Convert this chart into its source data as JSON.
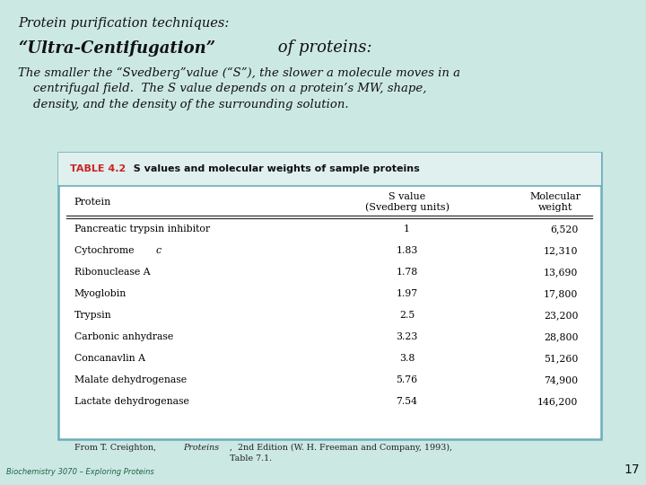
{
  "bg_color": "#cce8e3",
  "title1": "Protein purification techniques:",
  "title2_bold": "“Ultra-Centifugation”",
  "title2_rest": " of proteins:",
  "body_text": "The smaller the “Svedberg”value (“S”), the slower a molecule moves in a\n    centrifugal field.  The S value depends on a protein’s MW, shape,\n    density, and the density of the surrounding solution.",
  "table_title_label": "TABLE 4.2",
  "table_title_text": "  S values and molecular weights of sample proteins",
  "col_headers": [
    "Protein",
    "S value\n(Svedberg units)",
    "Molecular\nweight"
  ],
  "rows": [
    [
      "Pancreatic trypsin inhibitor",
      "1",
      "6,520"
    ],
    [
      "Cytochrome c",
      "1.83",
      "12,310"
    ],
    [
      "Ribonuclease A",
      "1.78",
      "13,690"
    ],
    [
      "Myoglobin",
      "1.97",
      "17,800"
    ],
    [
      "Trypsin",
      "2.5",
      "23,200"
    ],
    [
      "Carbonic anhydrase",
      "3.23",
      "28,800"
    ],
    [
      "Concanavlin A",
      "3.8",
      "51,260"
    ],
    [
      "Malate dehydrogenase",
      "5.76",
      "74,900"
    ],
    [
      "Lactate dehydrogenase",
      "7.54",
      "146,200"
    ]
  ],
  "footnote_normal": "From T. Creighton, ",
  "footnote_italic": "Proteins",
  "footnote_rest": ",  2nd Edition (W. H. Freeman and Company, 1993),\nTable 7.1.",
  "bottom_left": "Biochemistry 3070 – Exploring Proteins",
  "bottom_right": "17",
  "table_border_color": "#6aadbb",
  "table_header_label_color": "#cc2222",
  "text_color": "#111111"
}
